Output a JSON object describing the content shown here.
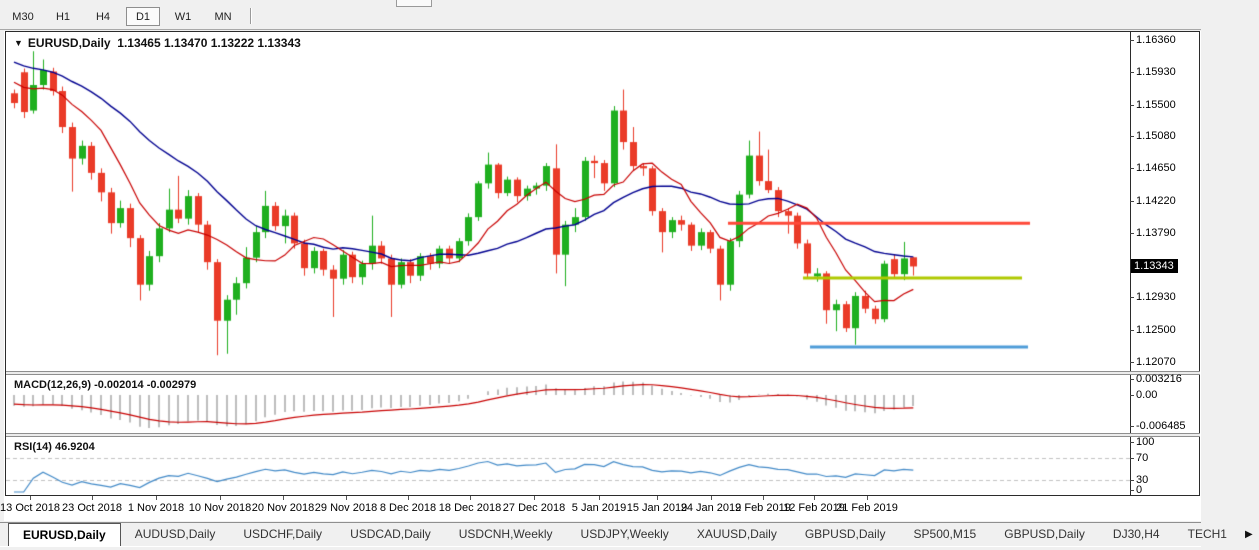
{
  "toolbar": {
    "timeframes": [
      {
        "label": "M30",
        "active": false
      },
      {
        "label": "H1",
        "active": false
      },
      {
        "label": "H4",
        "active": false
      },
      {
        "label": "D1",
        "active": true
      },
      {
        "label": "W1",
        "active": false
      },
      {
        "label": "MN",
        "active": false
      }
    ]
  },
  "chart": {
    "title_symbol": "EURUSD,Daily",
    "title_ohlc": "1.13465 1.13470 1.13222 1.13343",
    "dropdown_glyph": "▼",
    "price_axis_labels": [
      "1.16360",
      "1.15930",
      "1.15500",
      "1.15080",
      "1.14650",
      "1.14220",
      "1.13790",
      "1.12930",
      "1.12500",
      "1.12070"
    ],
    "price_badge": "1.13343"
  },
  "macd": {
    "label": "MACD(12,26,9)",
    "values": "-0.002014 -0.002979",
    "axis_labels": [
      "0.003216",
      "0.00",
      "-0.006485"
    ]
  },
  "rsi": {
    "label": "RSI(14)",
    "value": "46.9204",
    "axis_labels": [
      "100",
      "70",
      "30",
      "0"
    ]
  },
  "chart_data": {
    "type": "candlestick",
    "symbol": "EURUSD",
    "timeframe": "Daily",
    "last_bar": {
      "open": 1.13465,
      "high": 1.1347,
      "low": 1.13222,
      "close": 1.13343
    },
    "price_axis_range": [
      1.1207,
      1.1636
    ],
    "candles": [
      [
        1.1565,
        1.157,
        1.1545,
        1.1552
      ],
      [
        1.1593,
        1.1598,
        1.1532,
        1.154
      ],
      [
        1.1542,
        1.1621,
        1.1538,
        1.1576
      ],
      [
        1.1576,
        1.161,
        1.157,
        1.1596
      ],
      [
        1.1594,
        1.1599,
        1.1562,
        1.1568
      ],
      [
        1.1568,
        1.1574,
        1.1512,
        1.152
      ],
      [
        1.152,
        1.1526,
        1.1434,
        1.1478
      ],
      [
        1.1478,
        1.1502,
        1.147,
        1.1495
      ],
      [
        1.1495,
        1.15,
        1.145,
        1.1459
      ],
      [
        1.1459,
        1.1465,
        1.1421,
        1.1433
      ],
      [
        1.1433,
        1.1439,
        1.1378,
        1.1392
      ],
      [
        1.1392,
        1.1422,
        1.1386,
        1.1412
      ],
      [
        1.1412,
        1.1418,
        1.136,
        1.1372
      ],
      [
        1.1372,
        1.1376,
        1.1289,
        1.131
      ],
      [
        1.131,
        1.1355,
        1.1302,
        1.1348
      ],
      [
        1.1348,
        1.1392,
        1.134,
        1.1385
      ],
      [
        1.1385,
        1.1438,
        1.138,
        1.141
      ],
      [
        1.141,
        1.1455,
        1.1392,
        1.1398
      ],
      [
        1.1398,
        1.1436,
        1.139,
        1.1428
      ],
      [
        1.1428,
        1.1432,
        1.138,
        1.139
      ],
      [
        1.139,
        1.1395,
        1.133,
        1.134
      ],
      [
        1.134,
        1.1344,
        1.1216,
        1.1262
      ],
      [
        1.1262,
        1.1296,
        1.1218,
        1.129
      ],
      [
        1.129,
        1.132,
        1.127,
        1.1312
      ],
      [
        1.1312,
        1.136,
        1.1305,
        1.1346
      ],
      [
        1.1346,
        1.1388,
        1.134,
        1.138
      ],
      [
        1.138,
        1.1435,
        1.1372,
        1.1415
      ],
      [
        1.1415,
        1.142,
        1.1382,
        1.1388
      ],
      [
        1.1388,
        1.141,
        1.1365,
        1.1402
      ],
      [
        1.1402,
        1.1406,
        1.1358,
        1.1365
      ],
      [
        1.1365,
        1.137,
        1.1322,
        1.1332
      ],
      [
        1.1332,
        1.136,
        1.1325,
        1.1355
      ],
      [
        1.1355,
        1.1358,
        1.1322,
        1.133
      ],
      [
        1.133,
        1.1336,
        1.1267,
        1.1318
      ],
      [
        1.1318,
        1.1356,
        1.131,
        1.135
      ],
      [
        1.135,
        1.1354,
        1.1312,
        1.132
      ],
      [
        1.132,
        1.1342,
        1.131,
        1.1338
      ],
      [
        1.1338,
        1.1402,
        1.133,
        1.1362
      ],
      [
        1.1362,
        1.1368,
        1.1338,
        1.1345
      ],
      [
        1.1345,
        1.135,
        1.1267,
        1.131
      ],
      [
        1.131,
        1.1345,
        1.1305,
        1.134
      ],
      [
        1.134,
        1.1344,
        1.1312,
        1.1322
      ],
      [
        1.1322,
        1.1352,
        1.1315,
        1.1348
      ],
      [
        1.1348,
        1.1352,
        1.133,
        1.1338
      ],
      [
        1.1338,
        1.1362,
        1.1332,
        1.1358
      ],
      [
        1.1358,
        1.1362,
        1.1338,
        1.1345
      ],
      [
        1.1345,
        1.1372,
        1.134,
        1.1368
      ],
      [
        1.1368,
        1.1405,
        1.1362,
        1.14
      ],
      [
        1.14,
        1.1448,
        1.1395,
        1.1445
      ],
      [
        1.1445,
        1.1486,
        1.1438,
        1.147
      ],
      [
        1.147,
        1.1472,
        1.1425,
        1.1432
      ],
      [
        1.1432,
        1.1454,
        1.1428,
        1.145
      ],
      [
        1.145,
        1.1453,
        1.142,
        1.1428
      ],
      [
        1.1428,
        1.1442,
        1.1422,
        1.1438
      ],
      [
        1.1438,
        1.1446,
        1.143,
        1.1442
      ],
      [
        1.1442,
        1.1472,
        1.1435,
        1.1468
      ],
      [
        1.1465,
        1.1497,
        1.1325,
        1.135
      ],
      [
        1.135,
        1.1395,
        1.1308,
        1.139
      ],
      [
        1.139,
        1.1412,
        1.138,
        1.14
      ],
      [
        1.14,
        1.148,
        1.1395,
        1.1475
      ],
      [
        1.1475,
        1.1482,
        1.1452,
        1.1472
      ],
      [
        1.1472,
        1.1476,
        1.1435,
        1.1445
      ],
      [
        1.1445,
        1.1548,
        1.144,
        1.1542
      ],
      [
        1.1542,
        1.157,
        1.149,
        1.15
      ],
      [
        1.15,
        1.152,
        1.1462,
        1.1468
      ],
      [
        1.1468,
        1.1472,
        1.1455,
        1.1465
      ],
      [
        1.1465,
        1.1468,
        1.1402,
        1.1408
      ],
      [
        1.1408,
        1.1412,
        1.1353,
        1.138
      ],
      [
        1.138,
        1.14,
        1.1372,
        1.1396
      ],
      [
        1.1396,
        1.1402,
        1.1382,
        1.139
      ],
      [
        1.139,
        1.1393,
        1.1355,
        1.1362
      ],
      [
        1.1362,
        1.1385,
        1.1356,
        1.138
      ],
      [
        1.138,
        1.1383,
        1.1352,
        1.1358
      ],
      [
        1.1358,
        1.1362,
        1.1289,
        1.131
      ],
      [
        1.131,
        1.1372,
        1.1302,
        1.1368
      ],
      [
        1.1368,
        1.1435,
        1.136,
        1.143
      ],
      [
        1.143,
        1.1502,
        1.1425,
        1.1482
      ],
      [
        1.1482,
        1.1514,
        1.1442,
        1.1448
      ],
      [
        1.1448,
        1.149,
        1.1432,
        1.1436
      ],
      [
        1.1436,
        1.144,
        1.14,
        1.1408
      ],
      [
        1.1408,
        1.1412,
        1.1378,
        1.1402
      ],
      [
        1.1402,
        1.1406,
        1.1358,
        1.1365
      ],
      [
        1.1365,
        1.137,
        1.132,
        1.1325
      ],
      [
        1.1321,
        1.1332,
        1.1314,
        1.1325
      ],
      [
        1.1325,
        1.1328,
        1.1258,
        1.1276
      ],
      [
        1.1276,
        1.129,
        1.1248,
        1.1284
      ],
      [
        1.1284,
        1.1288,
        1.1247,
        1.1252
      ],
      [
        1.1252,
        1.13,
        1.123,
        1.1295
      ],
      [
        1.1295,
        1.1302,
        1.1272,
        1.1278
      ],
      [
        1.1278,
        1.1282,
        1.1258,
        1.1264
      ],
      [
        1.1264,
        1.1342,
        1.126,
        1.1338
      ],
      [
        1.1344,
        1.135,
        1.1318,
        1.1324
      ],
      [
        1.1324,
        1.1367,
        1.1316,
        1.1345
      ],
      [
        1.13465,
        1.1347,
        1.13222,
        1.13343
      ]
    ],
    "moving_averages": [
      {
        "name": "fast-ma",
        "period": 8,
        "color": "#C80000"
      },
      {
        "name": "slow-ma",
        "period": 21,
        "color": "#000090"
      }
    ],
    "hlines": [
      {
        "price": 1.1392,
        "color": "#FF4838",
        "x1": 728,
        "x2": 1030
      },
      {
        "price": 1.1319,
        "color": "#AFC800",
        "x1": 803,
        "x2": 1022
      },
      {
        "price": 1.1227,
        "color": "#4E9CD8",
        "x1": 810,
        "x2": 1028
      }
    ],
    "macd": {
      "fast": 12,
      "slow": 26,
      "signal": 9,
      "main_value": -0.002014,
      "signal_value": -0.002979,
      "hist_color": "#BDBDBD",
      "signal_color": "#C80000",
      "axis_max": 0.003216,
      "axis_min": -0.006485
    },
    "rsi": {
      "period": 14,
      "value": 46.9204,
      "line_color": "#4189C7",
      "levels": [
        70,
        30
      ]
    },
    "colors": {
      "up": "#1FAF1F",
      "down": "#EA3B28",
      "background": "#FFFFFF"
    },
    "x_ticks": [
      {
        "label": "13 Oct 2018",
        "x": 30
      },
      {
        "label": "23 Oct 2018",
        "x": 92
      },
      {
        "label": "1 Nov 2018",
        "x": 156
      },
      {
        "label": "10 Nov 2018",
        "x": 220
      },
      {
        "label": "20 Nov 2018",
        "x": 283
      },
      {
        "label": "29 Nov 2018",
        "x": 346
      },
      {
        "label": "8 Dec 2018",
        "x": 408
      },
      {
        "label": "18 Dec 2018",
        "x": 470
      },
      {
        "label": "27 Dec 2018",
        "x": 534
      },
      {
        "label": "5 Jan 2019",
        "x": 599
      },
      {
        "label": "15 Jan 2019",
        "x": 657
      },
      {
        "label": "24 Jan 2019",
        "x": 711
      },
      {
        "label": "2 Feb 2019",
        "x": 763
      },
      {
        "label": "12 Feb 2019",
        "x": 814
      },
      {
        "label": "21 Feb 2019",
        "x": 867
      }
    ]
  },
  "tabbar": {
    "scroll_icon": "▶",
    "tabs": [
      {
        "label": "EURUSD,Daily",
        "active": true
      },
      {
        "label": "AUDUSD,Daily",
        "active": false
      },
      {
        "label": "USDCHF,Daily",
        "active": false
      },
      {
        "label": "USDCAD,Daily",
        "active": false
      },
      {
        "label": "USDCNH,Weekly",
        "active": false
      },
      {
        "label": "USDJPY,Weekly",
        "active": false
      },
      {
        "label": "XAUUSD,Daily",
        "active": false
      },
      {
        "label": "GBPUSD,Daily",
        "active": false
      },
      {
        "label": "SP500,M15",
        "active": false
      },
      {
        "label": "GBPUSD,Daily",
        "active": false
      },
      {
        "label": "DJ30,H4",
        "active": false
      },
      {
        "label": "TECH1",
        "active": false
      }
    ]
  }
}
